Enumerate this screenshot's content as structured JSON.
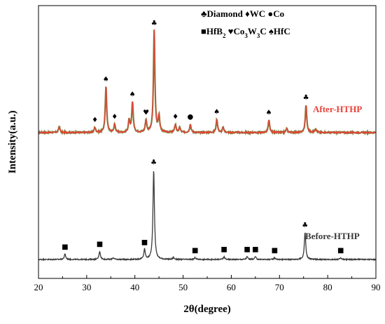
{
  "chart_data": {
    "type": "line",
    "xlabel": "2θ(degree)",
    "ylabel": "Intensity(a.u.)",
    "xlim": [
      20,
      90
    ],
    "xticks": [
      "20",
      "30",
      "40",
      "50",
      "60",
      "70",
      "80",
      "90"
    ],
    "legend": {
      "placement": "top-right",
      "items": [
        {
          "symbol": "♣",
          "text": "Diamond"
        },
        {
          "symbol": "♦",
          "text": "WC"
        },
        {
          "symbol": "●",
          "text": "Co"
        },
        {
          "symbol": "■",
          "text": "HfB",
          "sub": "2"
        },
        {
          "symbol": "♥",
          "text": "Co",
          "sub": "3",
          "text2": "W",
          "sub2": "3",
          "text3": "C"
        },
        {
          "symbol": "♠",
          "text": "HfC"
        }
      ]
    },
    "series": [
      {
        "name": "After-HTHP",
        "color": "#e8423a",
        "base_color": "#6b8a3a",
        "peaks": [
          {
            "x": 24.3,
            "h": 0.06,
            "m": ""
          },
          {
            "x": 31.7,
            "h": 0.05,
            "m": "♦"
          },
          {
            "x": 34.0,
            "h": 0.45,
            "m": "♠"
          },
          {
            "x": 35.8,
            "h": 0.08,
            "m": "♦"
          },
          {
            "x": 38.8,
            "h": 0.12,
            "m": ""
          },
          {
            "x": 39.5,
            "h": 0.3,
            "m": "♠"
          },
          {
            "x": 42.3,
            "h": 0.12,
            "m": "♥"
          },
          {
            "x": 44.0,
            "h": 1.0,
            "m": "♣"
          },
          {
            "x": 45.0,
            "h": 0.16,
            "m": ""
          },
          {
            "x": 48.4,
            "h": 0.08,
            "m": "♦"
          },
          {
            "x": 49.3,
            "h": 0.05,
            "m": ""
          },
          {
            "x": 51.5,
            "h": 0.08,
            "m": "●"
          },
          {
            "x": 57.0,
            "h": 0.13,
            "m": "♠"
          },
          {
            "x": 58.3,
            "h": 0.05,
            "m": ""
          },
          {
            "x": 67.8,
            "h": 0.12,
            "m": "♠"
          },
          {
            "x": 71.5,
            "h": 0.04,
            "m": ""
          },
          {
            "x": 75.5,
            "h": 0.27,
            "m": "♣"
          },
          {
            "x": 77.5,
            "h": 0.04,
            "m": ""
          }
        ]
      },
      {
        "name": "Before-HTHP",
        "color": "#3a3a3a",
        "base_color": "#3a3a3a",
        "peaks": [
          {
            "x": 25.5,
            "h": 0.06,
            "m": "■"
          },
          {
            "x": 32.7,
            "h": 0.09,
            "m": "■"
          },
          {
            "x": 35.5,
            "h": 0.02,
            "m": ""
          },
          {
            "x": 42.0,
            "h": 0.11,
            "m": "■"
          },
          {
            "x": 43.9,
            "h": 1.0,
            "m": "♣"
          },
          {
            "x": 48.0,
            "h": 0.02,
            "m": ""
          },
          {
            "x": 52.5,
            "h": 0.02,
            "m": "■"
          },
          {
            "x": 58.5,
            "h": 0.03,
            "m": "■"
          },
          {
            "x": 63.3,
            "h": 0.03,
            "m": "■"
          },
          {
            "x": 65.0,
            "h": 0.03,
            "m": "■"
          },
          {
            "x": 69.0,
            "h": 0.02,
            "m": "■"
          },
          {
            "x": 75.3,
            "h": 0.3,
            "m": "♣"
          },
          {
            "x": 82.7,
            "h": 0.02,
            "m": "■"
          }
        ]
      }
    ]
  }
}
